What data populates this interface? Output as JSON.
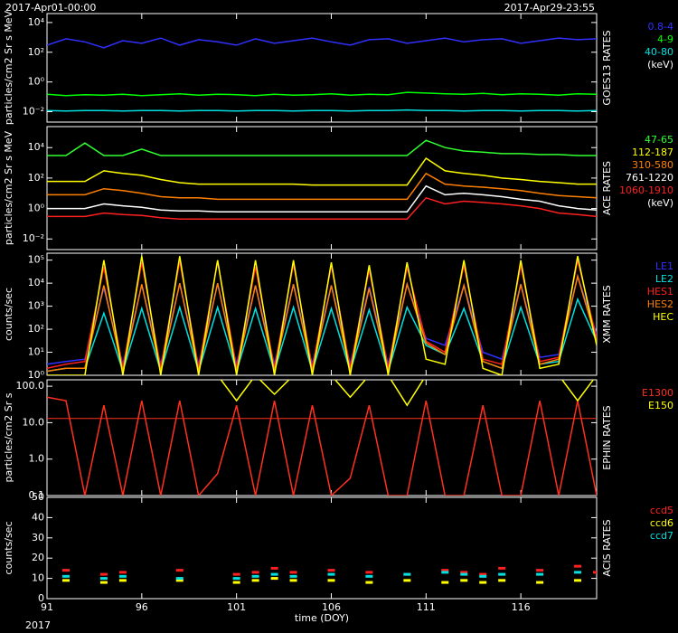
{
  "header": {
    "start": "2017-Apr01-00:00",
    "end": "2017-Apr29-23:55"
  },
  "footer": {
    "year": "2017"
  },
  "chart_data": [
    {
      "type": "line",
      "title": "GOES13 RATES",
      "ylabel": "particles/cm2 Sr s MeV",
      "log": true,
      "legend_unit": "(keV)",
      "x": [
        91,
        92,
        93,
        94,
        95,
        96,
        97,
        98,
        99,
        100,
        101,
        102,
        103,
        104,
        105,
        106,
        107,
        108,
        109,
        110,
        111,
        112,
        113,
        114,
        115,
        116,
        117,
        118,
        119,
        120
      ],
      "xlim": [
        91,
        120
      ],
      "ylim": [
        0.002,
        40000
      ],
      "yticks": [
        {
          "value": 0.01,
          "label": "10⁻²"
        },
        {
          "value": 1,
          "label": "10⁰"
        },
        {
          "value": 100,
          "label": "10²"
        },
        {
          "value": 10000,
          "label": "10⁴"
        }
      ],
      "series": [
        {
          "name": "0.8-4",
          "color": "#3030ff",
          "values": [
            300,
            800,
            500,
            200,
            600,
            400,
            900,
            300,
            700,
            500,
            300,
            800,
            400,
            600,
            900,
            500,
            300,
            700,
            800,
            400,
            600,
            900,
            500,
            700,
            800,
            400,
            600,
            900,
            700,
            800
          ]
        },
        {
          "name": "4-9",
          "color": "#00ff00",
          "values": [
            0.15,
            0.12,
            0.14,
            0.13,
            0.15,
            0.12,
            0.14,
            0.16,
            0.13,
            0.15,
            0.14,
            0.12,
            0.15,
            0.13,
            0.14,
            0.16,
            0.13,
            0.15,
            0.14,
            0.2,
            0.18,
            0.16,
            0.15,
            0.17,
            0.14,
            0.16,
            0.15,
            0.13,
            0.16,
            0.15
          ]
        },
        {
          "name": "40-80",
          "color": "#00e0e0",
          "values": [
            0.012,
            0.011,
            0.012,
            0.012,
            0.011,
            0.012,
            0.012,
            0.011,
            0.012,
            0.012,
            0.011,
            0.012,
            0.012,
            0.011,
            0.012,
            0.012,
            0.011,
            0.012,
            0.012,
            0.013,
            0.012,
            0.012,
            0.011,
            0.012,
            0.012,
            0.011,
            0.012,
            0.012,
            0.011,
            0.012
          ]
        }
      ]
    },
    {
      "type": "line",
      "title": "ACE RATES",
      "ylabel": "particles/cm2 Sr s MeV",
      "log": true,
      "legend_unit": "(keV)",
      "x": [
        91,
        92,
        93,
        94,
        95,
        96,
        97,
        98,
        99,
        100,
        101,
        102,
        103,
        104,
        105,
        106,
        107,
        108,
        109,
        110,
        111,
        112,
        113,
        114,
        115,
        116,
        117,
        118,
        119,
        120
      ],
      "xlim": [
        91,
        120
      ],
      "ylim": [
        0.002,
        240000
      ],
      "yticks": [
        {
          "value": 0.01,
          "label": "10⁻²"
        },
        {
          "value": 1,
          "label": "10⁰"
        },
        {
          "value": 100,
          "label": "10²"
        },
        {
          "value": 10000,
          "label": "10⁴"
        }
      ],
      "series": [
        {
          "name": "47-65",
          "color": "#30ff30",
          "values": [
            3000,
            3000,
            20000,
            3000,
            3000,
            8000,
            3000,
            3000,
            3000,
            3000,
            3000,
            3000,
            3000,
            3000,
            3000,
            3000,
            3000,
            3000,
            3000,
            3000,
            30000,
            10000,
            6000,
            5000,
            4000,
            4000,
            3500,
            3500,
            3000,
            3000
          ]
        },
        {
          "name": "112-187",
          "color": "#ffff00",
          "values": [
            60,
            60,
            60,
            300,
            200,
            150,
            80,
            50,
            40,
            40,
            40,
            40,
            40,
            40,
            35,
            35,
            35,
            35,
            35,
            35,
            2000,
            300,
            200,
            150,
            100,
            80,
            60,
            50,
            40,
            40
          ]
        },
        {
          "name": "310-580",
          "color": "#ff8000",
          "values": [
            8,
            8,
            8,
            20,
            15,
            10,
            6,
            5,
            5,
            4,
            4,
            4,
            4,
            4,
            4,
            4,
            4,
            4,
            4,
            4,
            200,
            40,
            30,
            25,
            20,
            15,
            10,
            7,
            6,
            5
          ]
        },
        {
          "name": "761-1220",
          "color": "#ffffff",
          "values": [
            1,
            1,
            1,
            2,
            1.5,
            1.2,
            0.8,
            0.7,
            0.7,
            0.6,
            0.6,
            0.6,
            0.6,
            0.6,
            0.6,
            0.6,
            0.6,
            0.6,
            0.6,
            0.6,
            30,
            8,
            10,
            8,
            6,
            4,
            3,
            1.5,
            1,
            0.8
          ]
        },
        {
          "name": "1060-1910",
          "color": "#ff2020",
          "values": [
            0.3,
            0.3,
            0.3,
            0.5,
            0.4,
            0.35,
            0.25,
            0.2,
            0.2,
            0.2,
            0.2,
            0.2,
            0.2,
            0.2,
            0.2,
            0.2,
            0.2,
            0.2,
            0.2,
            0.2,
            5,
            2,
            3,
            2.5,
            2,
            1.5,
            1,
            0.5,
            0.4,
            0.3
          ]
        }
      ]
    },
    {
      "type": "line",
      "title": "XMM RATES",
      "ylabel": "counts/sec",
      "log": true,
      "x": [
        91,
        92,
        93,
        94,
        95,
        96,
        97,
        98,
        99,
        100,
        101,
        102,
        103,
        104,
        105,
        106,
        107,
        108,
        109,
        110,
        111,
        112,
        113,
        114,
        115,
        116,
        117,
        118,
        119,
        120
      ],
      "xlim": [
        91,
        120
      ],
      "ylim": [
        1,
        200000
      ],
      "yticks": [
        {
          "value": 1,
          "label": "10⁰"
        },
        {
          "value": 10,
          "label": "10¹"
        },
        {
          "value": 100,
          "label": "10²"
        },
        {
          "value": 1000,
          "label": "10³"
        },
        {
          "value": 10000,
          "label": "10⁴"
        },
        {
          "value": 100000,
          "label": "10⁵"
        }
      ],
      "series": [
        {
          "name": "LE1",
          "color": "#3030ff",
          "values": [
            3,
            4,
            5,
            6000,
            3,
            8000,
            3,
            9000,
            3,
            9000,
            3,
            8000,
            3,
            9000,
            3,
            8000,
            3,
            7000,
            3,
            9000,
            40,
            20,
            8000,
            10,
            5,
            9000,
            6,
            8,
            20000,
            60
          ]
        },
        {
          "name": "LE2",
          "color": "#00e0e0",
          "values": [
            1.5,
            2,
            2,
            500,
            1.5,
            800,
            1.5,
            900,
            1.5,
            900,
            1.5,
            800,
            1.5,
            900,
            1.5,
            800,
            1.5,
            700,
            1.5,
            900,
            20,
            8,
            800,
            4,
            2,
            900,
            3,
            4,
            2000,
            30
          ]
        },
        {
          "name": "HES1",
          "color": "#ff2020",
          "values": [
            2,
            3,
            4,
            50000,
            2,
            80000,
            2,
            90000,
            2,
            90000,
            2,
            50000,
            2,
            70000,
            2,
            60000,
            2,
            40000,
            2,
            50000,
            30,
            10,
            60000,
            5,
            3,
            60000,
            4,
            6,
            100000,
            40
          ]
        },
        {
          "name": "HES2",
          "color": "#ff8000",
          "values": [
            1.5,
            2,
            2,
            8000,
            1.5,
            9000,
            1.5,
            10000,
            1.5,
            10000,
            1.5,
            8000,
            1.5,
            9000,
            1.5,
            8000,
            1.5,
            6000,
            1.5,
            9000,
            25,
            8,
            8000,
            4,
            2,
            9000,
            3,
            5,
            20000,
            30
          ]
        },
        {
          "name": "HEC",
          "color": "#ffff00",
          "values": [
            1,
            1,
            1,
            100000,
            1,
            150000,
            1,
            150000,
            1,
            100000,
            1,
            100000,
            1,
            100000,
            1,
            80000,
            1,
            60000,
            1,
            80000,
            5,
            3,
            100000,
            2,
            1,
            100000,
            2,
            3,
            150000,
            20
          ]
        }
      ]
    },
    {
      "type": "line",
      "title": "EPHIN RATES",
      "ylabel": "particles/cm2 Sr s",
      "log": true,
      "x": [
        91,
        92,
        93,
        94,
        95,
        96,
        97,
        98,
        99,
        100,
        101,
        102,
        103,
        104,
        105,
        106,
        107,
        108,
        109,
        110,
        111,
        112,
        113,
        114,
        115,
        116,
        117,
        118,
        119,
        120
      ],
      "xlim": [
        91,
        120
      ],
      "ylim": [
        0.1,
        150
      ],
      "yticks": [
        {
          "value": 0.1,
          "label": "0.1"
        },
        {
          "value": 1,
          "label": "1.0"
        },
        {
          "value": 10,
          "label": "10.0"
        },
        {
          "value": 100,
          "label": "100.0"
        }
      ],
      "threshold": {
        "value": 13,
        "color": "#ff3020"
      },
      "series": [
        {
          "name": "E1300",
          "color": "#ff3020",
          "values": [
            50,
            40,
            0.1,
            30,
            0.1,
            40,
            0.1,
            40,
            0.1,
            0.4,
            30,
            0.1,
            40,
            0.1,
            30,
            0.1,
            0.3,
            30,
            0.1,
            0.1,
            40,
            0.1,
            0.1,
            30,
            0.1,
            0.1,
            40,
            0.1,
            40,
            0.1
          ]
        },
        {
          "name": "E150",
          "color": "#ffff00",
          "values": [
            200,
            200,
            200,
            200,
            200,
            200,
            200,
            200,
            200,
            200,
            40,
            200,
            60,
            200,
            200,
            200,
            50,
            200,
            200,
            30,
            200,
            200,
            200,
            200,
            200,
            200,
            200,
            200,
            40,
            200
          ]
        }
      ]
    },
    {
      "type": "scatter",
      "title": "ACIS RATES",
      "ylabel": "counts/sec",
      "log": false,
      "xlabel": "time (DOY)",
      "x": [
        91,
        92,
        93,
        94,
        95,
        96,
        97,
        98,
        99,
        100,
        101,
        102,
        103,
        104,
        105,
        106,
        107,
        108,
        109,
        110,
        111,
        112,
        113,
        114,
        115,
        116,
        117,
        118,
        119,
        120
      ],
      "xlim": [
        91,
        120
      ],
      "xticks": [
        91,
        96,
        101,
        106,
        111,
        116
      ],
      "ylim": [
        0,
        50
      ],
      "yticks": [
        0,
        10,
        20,
        30,
        40,
        50
      ],
      "series": [
        {
          "name": "ccd5",
          "color": "#ff2020",
          "values": [
            null,
            14,
            null,
            12,
            13,
            null,
            null,
            14,
            null,
            null,
            12,
            13,
            15,
            13,
            null,
            14,
            null,
            13,
            null,
            12,
            null,
            14,
            13,
            12,
            15,
            null,
            14,
            null,
            16,
            13
          ]
        },
        {
          "name": "ccd6",
          "color": "#ffff00",
          "values": [
            null,
            9,
            null,
            8,
            9,
            null,
            null,
            9,
            null,
            null,
            8,
            9,
            10,
            9,
            null,
            9,
            null,
            8,
            null,
            9,
            null,
            8,
            9,
            8,
            9,
            null,
            8,
            null,
            9,
            null
          ]
        },
        {
          "name": "ccd7",
          "color": "#00e0e0",
          "values": [
            null,
            11,
            null,
            10,
            11,
            null,
            null,
            10,
            null,
            null,
            10,
            11,
            12,
            11,
            null,
            12,
            null,
            11,
            null,
            12,
            null,
            13,
            12,
            11,
            12,
            null,
            12,
            null,
            13,
            null
          ]
        }
      ]
    }
  ]
}
